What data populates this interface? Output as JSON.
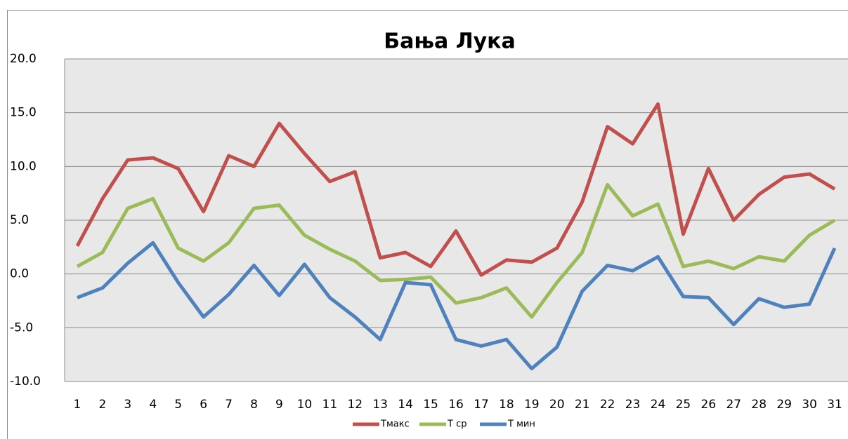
{
  "chart_data": {
    "type": "line",
    "title": "Бања Лука",
    "categories": [
      "1",
      "2",
      "3",
      "4",
      "5",
      "6",
      "7",
      "8",
      "9",
      "10",
      "11",
      "12",
      "13",
      "14",
      "15",
      "16",
      "17",
      "18",
      "19",
      "20",
      "21",
      "22",
      "23",
      "24",
      "25",
      "26",
      "27",
      "28",
      "29",
      "30",
      "31"
    ],
    "series": [
      {
        "name": "Tмакс",
        "color": "#c0504d",
        "values": [
          2.6,
          7.0,
          10.6,
          10.8,
          9.8,
          5.8,
          11.0,
          10.0,
          14.0,
          11.2,
          8.6,
          9.5,
          1.5,
          2.0,
          0.7,
          4.0,
          -0.1,
          1.3,
          1.1,
          2.4,
          6.7,
          13.7,
          12.1,
          15.8,
          3.7,
          9.8,
          5.0,
          7.4,
          9.0,
          9.3,
          7.9
        ]
      },
      {
        "name": "T ср",
        "color": "#9bbb59",
        "values": [
          0.7,
          2.0,
          6.1,
          7.0,
          2.4,
          1.2,
          2.9,
          6.1,
          6.4,
          3.6,
          2.3,
          1.2,
          -0.6,
          -0.5,
          -0.3,
          -2.7,
          -2.2,
          -1.3,
          -4.0,
          -0.8,
          2.0,
          8.3,
          5.4,
          6.5,
          0.7,
          1.2,
          0.5,
          1.6,
          1.2,
          3.6,
          5.0
        ]
      },
      {
        "name": "T мин",
        "color": "#4f81bd",
        "values": [
          -2.2,
          -1.3,
          1.0,
          2.9,
          -0.8,
          -4.0,
          -1.9,
          0.8,
          -2.0,
          0.9,
          -2.2,
          -4.0,
          -6.1,
          -0.8,
          -1.0,
          -6.1,
          -6.7,
          -6.1,
          -8.8,
          -6.8,
          -1.6,
          0.8,
          0.3,
          1.6,
          -2.1,
          -2.2,
          -4.7,
          -2.3,
          -3.1,
          -2.8,
          2.4
        ]
      }
    ],
    "ylim": [
      -10,
      20
    ],
    "yticks": [
      {
        "value": -10,
        "label": "-10.0"
      },
      {
        "value": -5,
        "label": "-5.0"
      },
      {
        "value": 0,
        "label": "0.0"
      },
      {
        "value": 5,
        "label": "5.0"
      },
      {
        "value": 10,
        "label": "10.0"
      },
      {
        "value": 15,
        "label": "15.0"
      },
      {
        "value": 20,
        "label": "20.0"
      }
    ],
    "grid": true,
    "legend": "bottom"
  }
}
